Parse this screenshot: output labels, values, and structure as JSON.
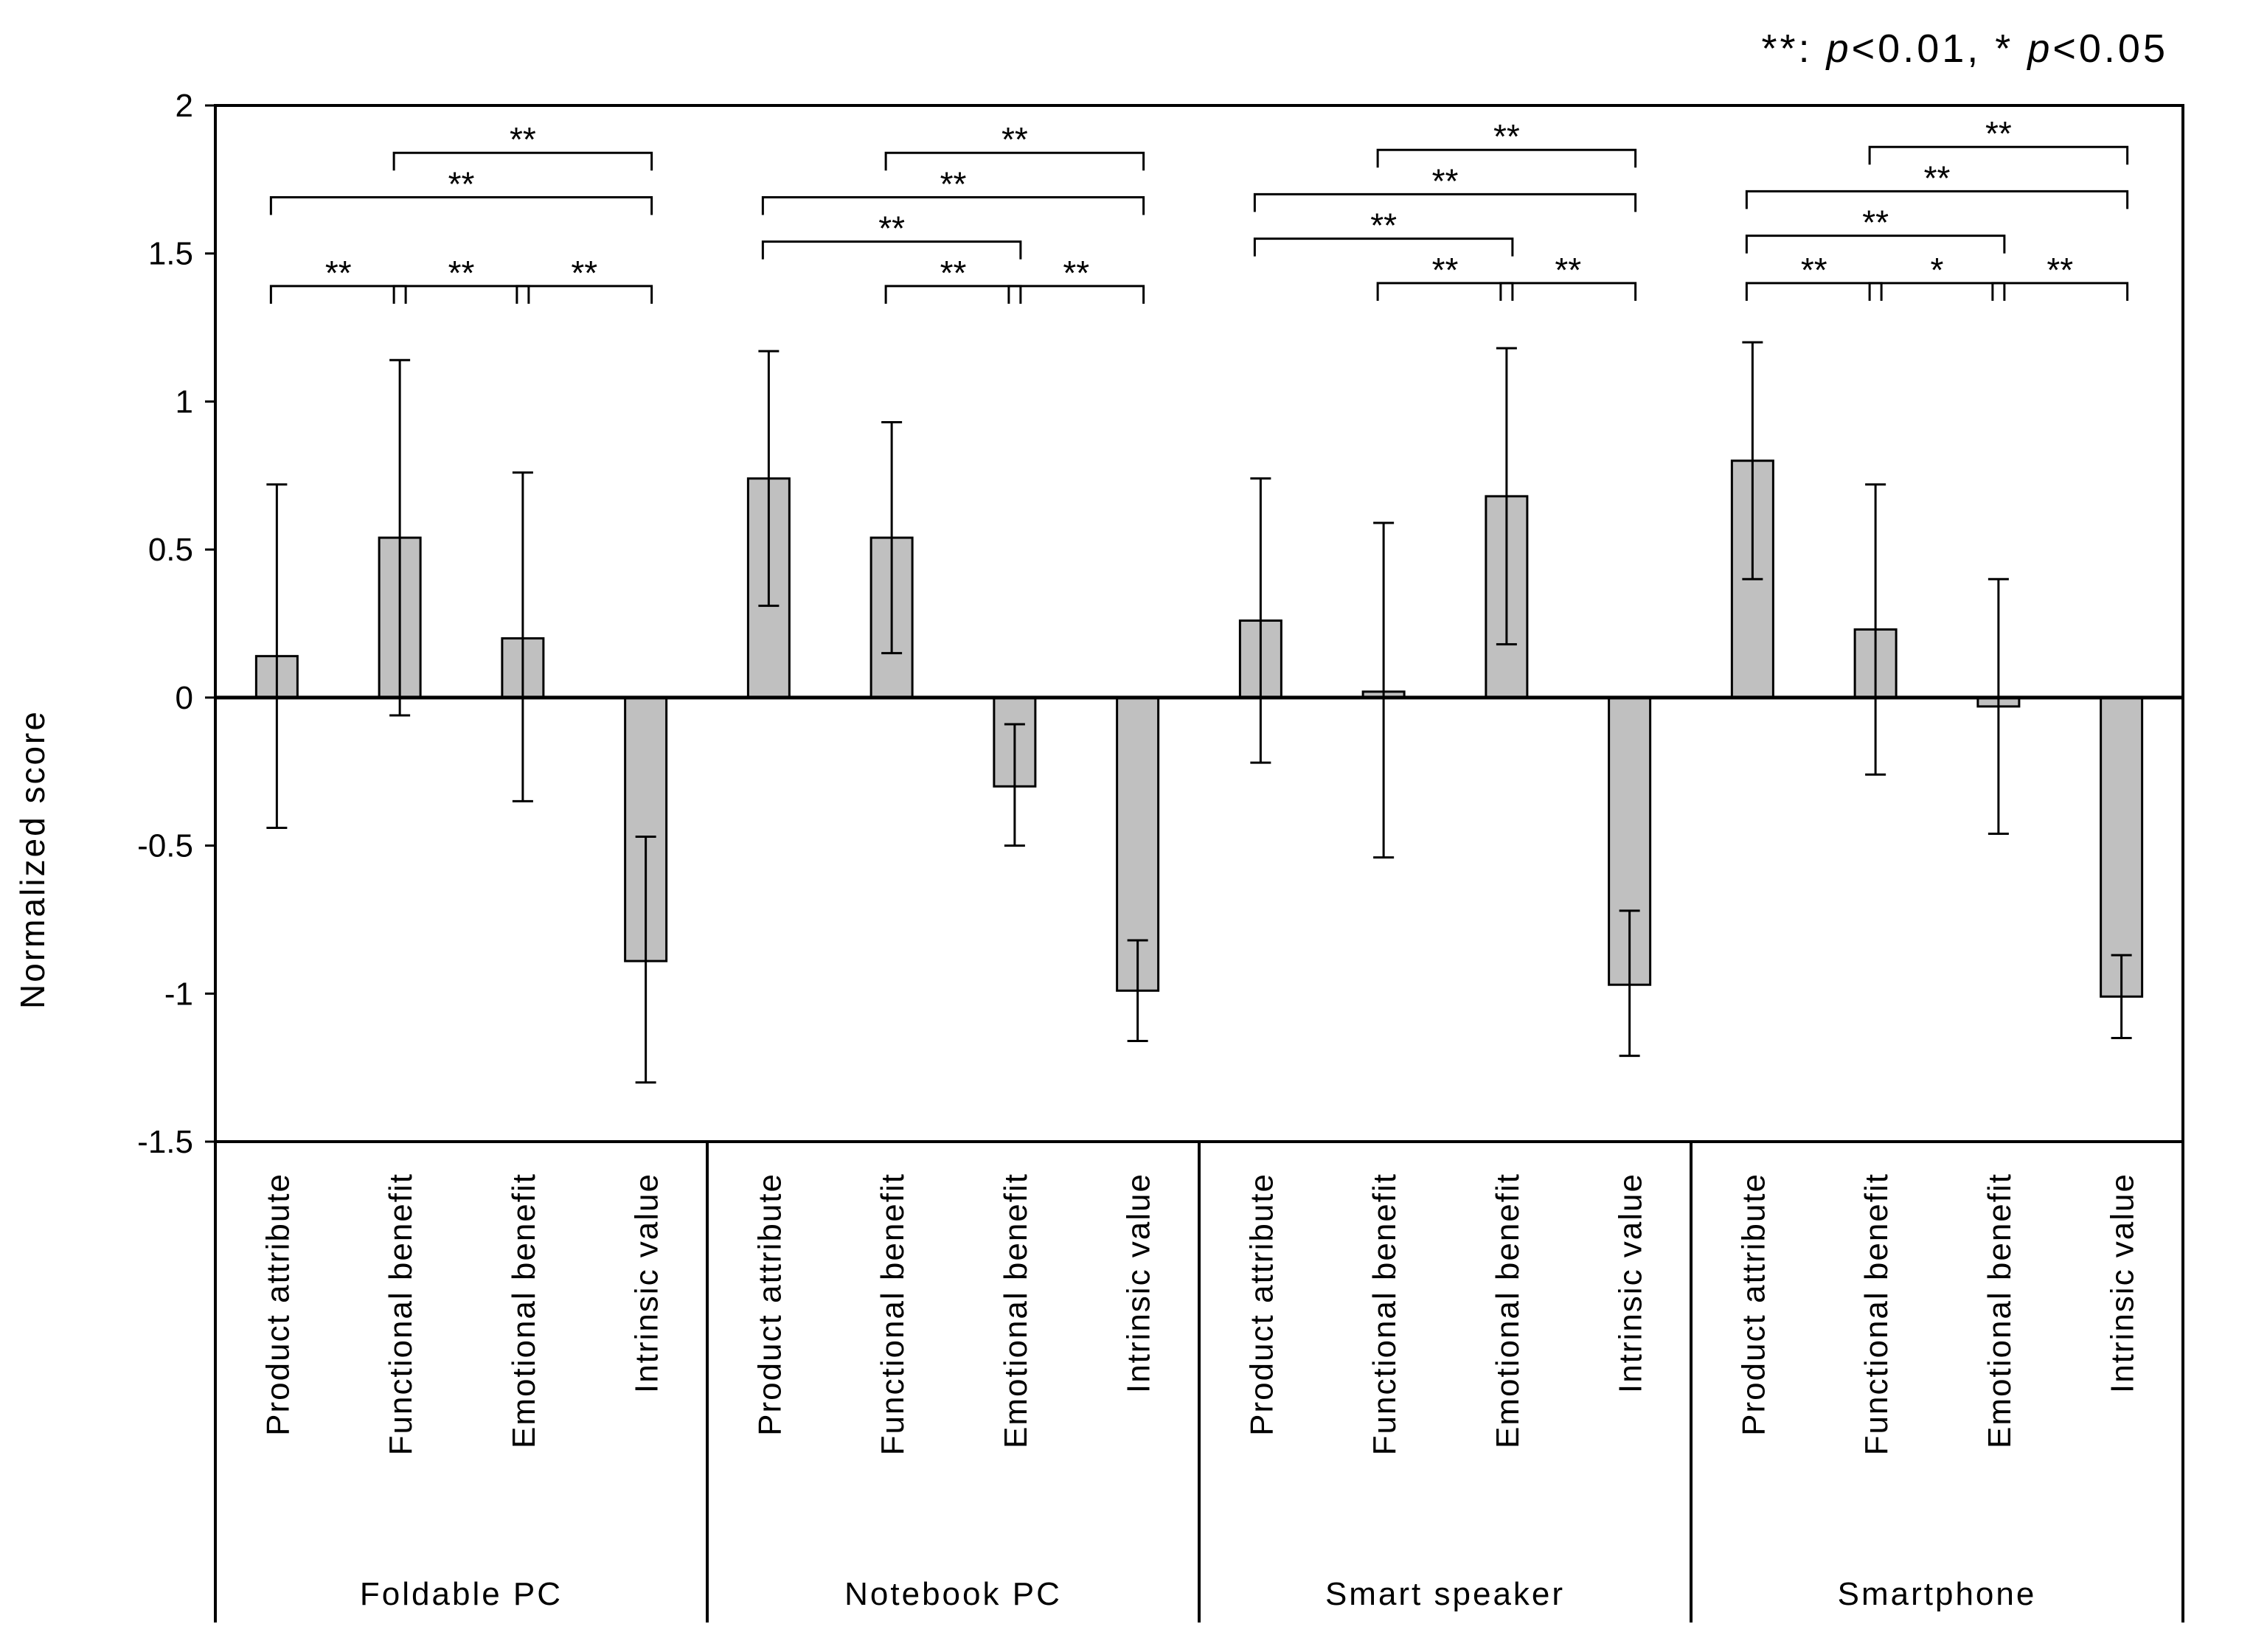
{
  "chart_data": {
    "type": "bar",
    "ylabel": "Normalized score",
    "ylim": [
      -1.5,
      2
    ],
    "yticks": [
      2,
      1.5,
      1,
      0.5,
      0,
      -0.5,
      -1,
      -1.5
    ],
    "ytick_labels": [
      "2",
      "1.5",
      "1",
      "0.5",
      "0",
      "-0.5",
      "-1",
      "-1.5"
    ],
    "legend": {
      "double_star": "**",
      "double_label": ": ",
      "p": "p",
      "double_cond": "<0.01, ",
      "single_star": "*",
      "single_label": " ",
      "single_cond": "<0.05"
    },
    "categories": [
      "Product attribute",
      "Functional benefit",
      "Emotional benefit",
      "Intrinsic value"
    ],
    "groups": [
      {
        "name": "Foldable PC",
        "bars": [
          {
            "category": "Product attribute",
            "value": 0.14,
            "err_low": -0.44,
            "err_high": 0.72
          },
          {
            "category": "Functional benefit",
            "value": 0.54,
            "err_low": -0.06,
            "err_high": 1.14
          },
          {
            "category": "Emotional benefit",
            "value": 0.2,
            "err_low": -0.35,
            "err_high": 0.76
          },
          {
            "category": "Intrinsic value",
            "value": -0.89,
            "err_low": -1.3,
            "err_high": -0.47
          }
        ],
        "brackets": [
          {
            "from": 0,
            "to": 1,
            "y": 1.39,
            "label": "**"
          },
          {
            "from": 1,
            "to": 2,
            "y": 1.39,
            "label": "**"
          },
          {
            "from": 2,
            "to": 3,
            "y": 1.39,
            "label": "**"
          },
          {
            "from": 0,
            "to": 3,
            "y": 1.69,
            "label": "**"
          },
          {
            "from": 1,
            "to": 3,
            "y": 1.84,
            "label": "**"
          }
        ]
      },
      {
        "name": "Notebook PC",
        "bars": [
          {
            "category": "Product attribute",
            "value": 0.74,
            "err_low": 0.31,
            "err_high": 1.17
          },
          {
            "category": "Functional benefit",
            "value": 0.54,
            "err_low": 0.15,
            "err_high": 0.93
          },
          {
            "category": "Emotional benefit",
            "value": -0.3,
            "err_low": -0.5,
            "err_high": -0.09
          },
          {
            "category": "Intrinsic value",
            "value": -0.99,
            "err_low": -1.16,
            "err_high": -0.82
          }
        ],
        "brackets": [
          {
            "from": 1,
            "to": 2,
            "y": 1.39,
            "label": "**"
          },
          {
            "from": 2,
            "to": 3,
            "y": 1.39,
            "label": "**"
          },
          {
            "from": 0,
            "to": 2,
            "y": 1.54,
            "label": "**"
          },
          {
            "from": 0,
            "to": 3,
            "y": 1.69,
            "label": "**"
          },
          {
            "from": 1,
            "to": 3,
            "y": 1.84,
            "label": "**"
          }
        ]
      },
      {
        "name": "Smart speaker",
        "bars": [
          {
            "category": "Product attribute",
            "value": 0.26,
            "err_low": -0.22,
            "err_high": 0.74
          },
          {
            "category": "Functional benefit",
            "value": 0.02,
            "err_low": -0.54,
            "err_high": 0.59
          },
          {
            "category": "Emotional benefit",
            "value": 0.68,
            "err_low": 0.18,
            "err_high": 1.18
          },
          {
            "category": "Intrinsic value",
            "value": -0.97,
            "err_low": -1.21,
            "err_high": -0.72
          }
        ],
        "brackets": [
          {
            "from": 1,
            "to": 2,
            "y": 1.4,
            "label": "**"
          },
          {
            "from": 2,
            "to": 3,
            "y": 1.4,
            "label": "**"
          },
          {
            "from": 0,
            "to": 2,
            "y": 1.55,
            "label": "**"
          },
          {
            "from": 0,
            "to": 3,
            "y": 1.7,
            "label": "**"
          },
          {
            "from": 1,
            "to": 3,
            "y": 1.85,
            "label": "**"
          }
        ]
      },
      {
        "name": "Smartphone",
        "bars": [
          {
            "category": "Product attribute",
            "value": 0.8,
            "err_low": 0.4,
            "err_high": 1.2
          },
          {
            "category": "Functional benefit",
            "value": 0.23,
            "err_low": -0.26,
            "err_high": 0.72
          },
          {
            "category": "Emotional benefit",
            "value": -0.03,
            "err_low": -0.46,
            "err_high": 0.4
          },
          {
            "category": "Intrinsic value",
            "value": -1.01,
            "err_low": -1.15,
            "err_high": -0.87
          }
        ],
        "brackets": [
          {
            "from": 0,
            "to": 1,
            "y": 1.4,
            "label": "**"
          },
          {
            "from": 1,
            "to": 2,
            "y": 1.4,
            "label": "*"
          },
          {
            "from": 2,
            "to": 3,
            "y": 1.4,
            "label": "**"
          },
          {
            "from": 0,
            "to": 2,
            "y": 1.56,
            "label": "**"
          },
          {
            "from": 0,
            "to": 3,
            "y": 1.71,
            "label": "**"
          },
          {
            "from": 1,
            "to": 3,
            "y": 1.86,
            "label": "**"
          }
        ]
      }
    ]
  }
}
